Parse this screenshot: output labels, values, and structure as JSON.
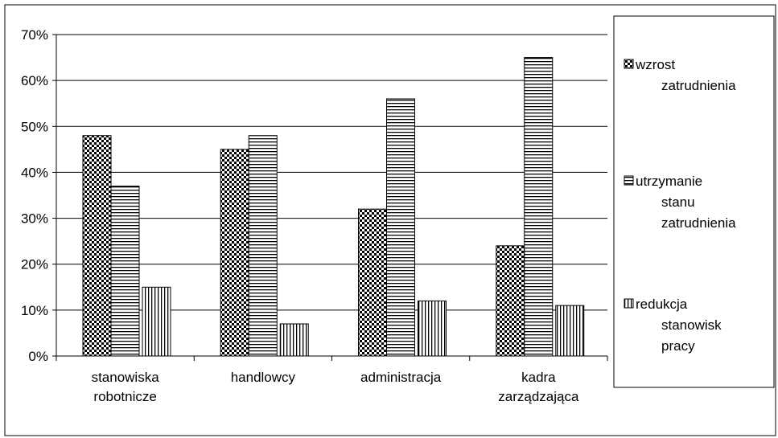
{
  "chart_data": {
    "type": "bar",
    "categories": [
      "stanowiska robotnicze",
      "handlowcy",
      "administracja",
      "kadra zarządzająca"
    ],
    "series": [
      {
        "name": "wzrost zatrudnienia",
        "color": "#000000",
        "pattern": "checker",
        "values": [
          48,
          45,
          32,
          24
        ]
      },
      {
        "name": "utrzymanie stanu zatrudnienia",
        "color": "#000000",
        "pattern": "horizontal",
        "values": [
          37,
          48,
          56,
          65
        ]
      },
      {
        "name": "redukcja stanowisk pracy",
        "color": "#000000",
        "pattern": "vertical",
        "values": [
          15,
          7,
          12,
          11
        ]
      }
    ],
    "ylim": [
      0,
      70
    ],
    "yticks": [
      {
        "value": 0,
        "label": "0%"
      },
      {
        "value": 10,
        "label": "10%"
      },
      {
        "value": 20,
        "label": "20%"
      },
      {
        "value": 30,
        "label": "30%"
      },
      {
        "value": 40,
        "label": "40%"
      },
      {
        "value": 50,
        "label": "50%"
      },
      {
        "value": 60,
        "label": "60%"
      },
      {
        "value": 70,
        "label": "70%"
      }
    ],
    "grid": true,
    "legend": "right"
  }
}
